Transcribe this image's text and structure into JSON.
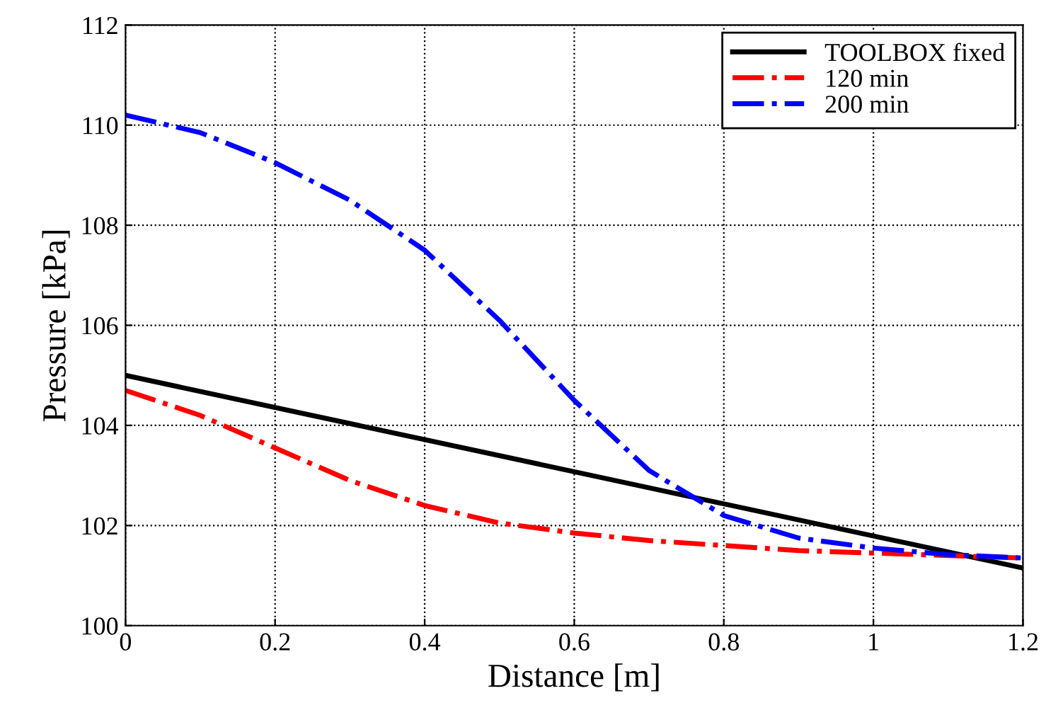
{
  "chart_data": {
    "type": "line",
    "xlabel": "Distance [m]",
    "ylabel": "Pressure [kPa]",
    "xlim": [
      0,
      1.2
    ],
    "ylim": [
      100,
      112
    ],
    "xticks": [
      0,
      0.2,
      0.4,
      0.6,
      0.8,
      1,
      1.2
    ],
    "yticks": [
      100,
      102,
      104,
      106,
      108,
      110,
      112
    ],
    "grid": true,
    "legend": "top right",
    "x": [
      0,
      0.1,
      0.2,
      0.3,
      0.4,
      0.5,
      0.6,
      0.7,
      0.8,
      0.9,
      1.0,
      1.1,
      1.2
    ],
    "series": [
      {
        "name": "TOOLBOX fixed",
        "color": "#000000",
        "line_style": "solid",
        "x": [
          0,
          1.2
        ],
        "values": [
          105,
          101.15
        ]
      },
      {
        "name": "120 min",
        "color": "#ff0000",
        "line_style": "dashdot",
        "values": [
          104.7,
          104.2,
          103.55,
          102.9,
          102.4,
          102.05,
          101.85,
          101.7,
          101.6,
          101.5,
          101.45,
          101.4,
          101.35
        ]
      },
      {
        "name": "200 min",
        "color": "#0000ff",
        "line_style": "dashdot",
        "values": [
          110.2,
          109.85,
          109.25,
          108.5,
          107.5,
          106.1,
          104.5,
          103.1,
          102.2,
          101.75,
          101.55,
          101.42,
          101.35
        ]
      }
    ]
  }
}
